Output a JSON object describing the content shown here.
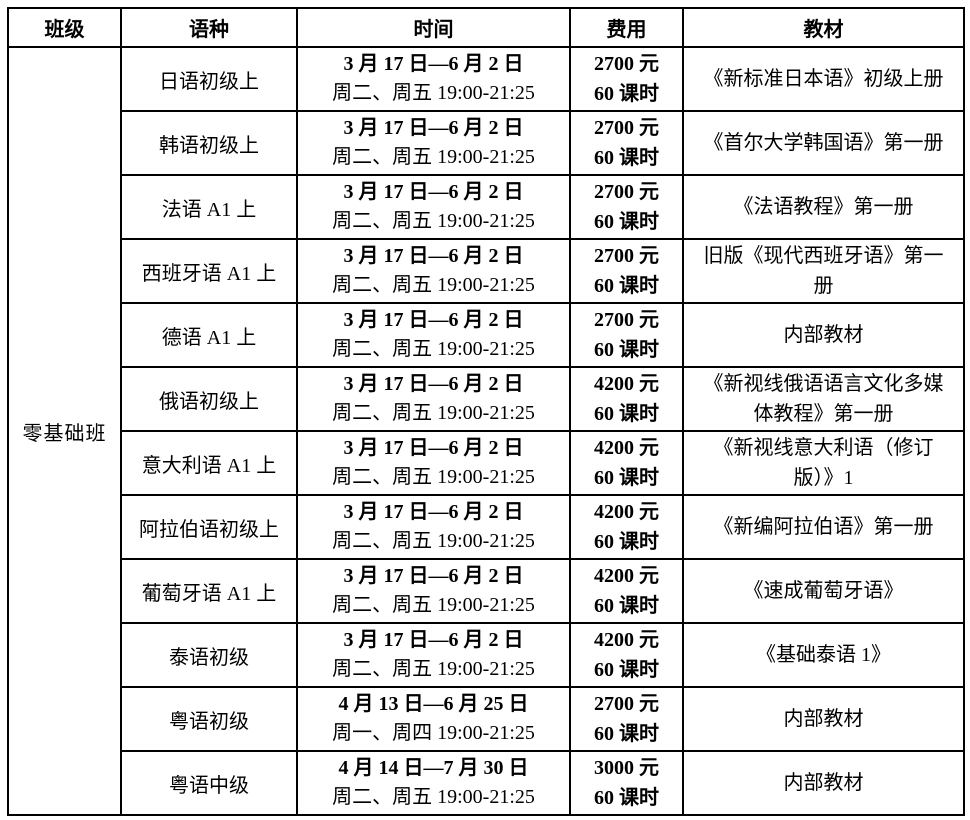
{
  "table": {
    "headers": [
      "班级",
      "语种",
      "时间",
      "费用",
      "教材"
    ],
    "class_group": "零基础班",
    "rows": [
      {
        "language": "日语初级上",
        "date": "3 月 17 日—6 月 2 日",
        "schedule": "周二、周五 19:00-21:25",
        "price": "2700 元",
        "hours": "60 课时",
        "textbook": "《新标准日本语》初级上册"
      },
      {
        "language": "韩语初级上",
        "date": "3 月 17 日—6 月 2 日",
        "schedule": "周二、周五 19:00-21:25",
        "price": "2700 元",
        "hours": "60 课时",
        "textbook": "《首尔大学韩国语》第一册"
      },
      {
        "language": "法语 A1 上",
        "date": "3 月 17 日—6 月 2 日",
        "schedule": "周二、周五 19:00-21:25",
        "price": "2700 元",
        "hours": "60 课时",
        "textbook": "《法语教程》第一册"
      },
      {
        "language": "西班牙语 A1 上",
        "date": "3 月 17 日—6 月 2 日",
        "schedule": "周二、周五 19:00-21:25",
        "price": "2700 元",
        "hours": "60 课时",
        "textbook": "旧版《现代西班牙语》第一册"
      },
      {
        "language": "德语 A1 上",
        "date": "3 月 17 日—6 月 2 日",
        "schedule": "周二、周五 19:00-21:25",
        "price": "2700 元",
        "hours": "60 课时",
        "textbook": "内部教材"
      },
      {
        "language": "俄语初级上",
        "date": "3 月 17 日—6 月 2 日",
        "schedule": "周二、周五 19:00-21:25",
        "price": "4200 元",
        "hours": "60 课时",
        "textbook": "《新视线俄语语言文化多媒体教程》第一册"
      },
      {
        "language": "意大利语 A1 上",
        "date": "3 月 17 日—6 月 2 日",
        "schedule": "周二、周五 19:00-21:25",
        "price": "4200 元",
        "hours": "60 课时",
        "textbook": "《新视线意大利语（修订版）》1"
      },
      {
        "language": "阿拉伯语初级上",
        "date": "3 月 17 日—6 月 2 日",
        "schedule": "周二、周五 19:00-21:25",
        "price": "4200 元",
        "hours": "60 课时",
        "textbook": "《新编阿拉伯语》第一册"
      },
      {
        "language": "葡萄牙语 A1 上",
        "date": "3 月 17 日—6 月 2 日",
        "schedule": "周二、周五 19:00-21:25",
        "price": "4200 元",
        "hours": "60 课时",
        "textbook": "《速成葡萄牙语》"
      },
      {
        "language": "泰语初级",
        "date": "3 月 17 日—6 月 2 日",
        "schedule": "周二、周五 19:00-21:25",
        "price": "4200 元",
        "hours": "60 课时",
        "textbook": "《基础泰语 1》"
      },
      {
        "language": "粤语初级",
        "date": "4 月 13 日—6 月 25 日",
        "schedule": "周一、周四 19:00-21:25",
        "price": "2700 元",
        "hours": "60 课时",
        "textbook": "内部教材"
      },
      {
        "language": "粤语中级",
        "date": "4 月 14 日—7 月 30 日",
        "schedule": "周二、周五 19:00-21:25",
        "price": "3000 元",
        "hours": "60 课时",
        "textbook": "内部教材"
      }
    ]
  }
}
